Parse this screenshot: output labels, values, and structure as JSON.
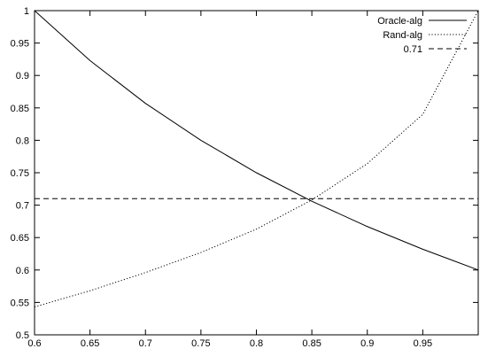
{
  "chart_data": {
    "type": "line",
    "title": "",
    "xlabel": "",
    "ylabel": "",
    "xlim": [
      0.6,
      1.0
    ],
    "ylim": [
      0.5,
      1.0
    ],
    "grid": false,
    "legend_position": "top-right",
    "x_ticks": [
      0.6,
      0.65,
      0.7,
      0.75,
      0.8,
      0.85,
      0.9,
      0.95
    ],
    "x_tick_labels": [
      "0.6",
      "0.65",
      "0.7",
      "0.75",
      "0.8",
      "0.85",
      "0.9",
      "0.95"
    ],
    "y_ticks": [
      0.5,
      0.55,
      0.6,
      0.65,
      0.7,
      0.75,
      0.8,
      0.85,
      0.9,
      0.95,
      1.0
    ],
    "y_tick_labels": [
      "0.5",
      "0.55",
      "0.6",
      "0.65",
      "0.7",
      "0.75",
      "0.8",
      "0.85",
      "0.9",
      "0.95",
      "1"
    ],
    "series": [
      {
        "name": "Oracle-alg",
        "style": "solid",
        "color": "#000000",
        "x": [
          0.6,
          0.65,
          0.7,
          0.75,
          0.8,
          0.85,
          0.9,
          0.95,
          1.0
        ],
        "y": [
          1.0,
          0.923,
          0.857,
          0.8,
          0.75,
          0.706,
          0.667,
          0.632,
          0.6
        ]
      },
      {
        "name": "Rand-alg",
        "style": "dotted",
        "color": "#000000",
        "x": [
          0.6,
          0.65,
          0.7,
          0.75,
          0.8,
          0.85,
          0.9,
          0.95,
          1.0
        ],
        "y": [
          0.543,
          0.568,
          0.596,
          0.627,
          0.663,
          0.708,
          0.764,
          0.84,
          1.0
        ]
      },
      {
        "name": "0.71",
        "style": "dashed",
        "color": "#000000",
        "x": [
          0.6,
          1.0
        ],
        "y": [
          0.71,
          0.71
        ]
      }
    ]
  }
}
